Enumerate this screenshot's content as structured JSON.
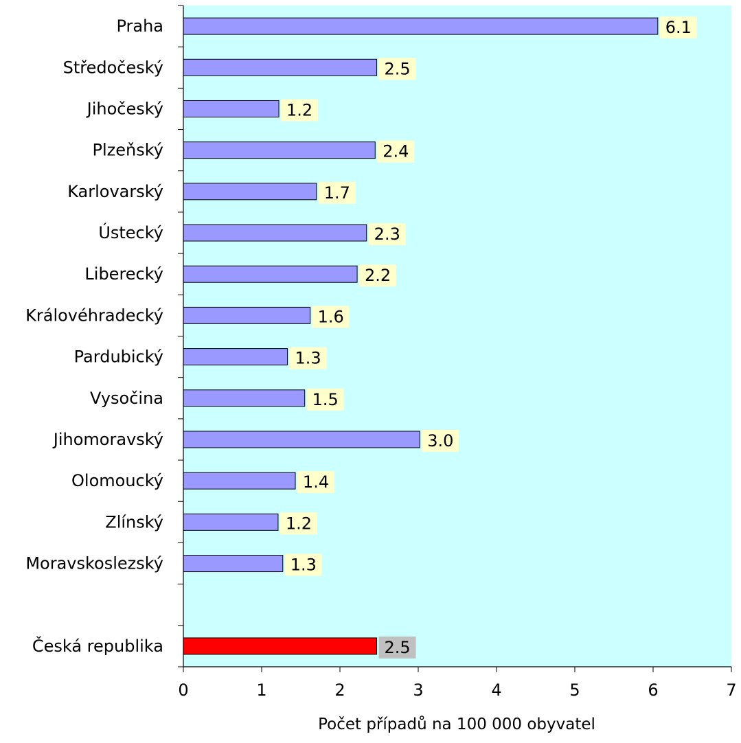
{
  "chart_data": {
    "type": "bar",
    "orientation": "horizontal",
    "categories": [
      "Praha",
      "Středočeský",
      "Jihočeský",
      "Plzeňský",
      "Karlovarský",
      "Ústecký",
      "Liberecký",
      "Královéhradecký",
      "Pardubický",
      "Vysočina",
      "Jihomoravský",
      "Olomoucký",
      "Zlínský",
      "Moravskoslezský",
      "",
      "Česká republika"
    ],
    "values": [
      6.06,
      2.47,
      1.22,
      2.45,
      1.7,
      2.34,
      2.22,
      1.62,
      1.33,
      1.55,
      3.02,
      1.43,
      1.21,
      1.27,
      null,
      2.47
    ],
    "data_labels": [
      "6.1",
      "2.5",
      "1.2",
      "2.4",
      "1.7",
      "2.3",
      "2.2",
      "1.6",
      "1.3",
      "1.5",
      "3.0",
      "1.4",
      "1.2",
      "1.3",
      "",
      "2.5"
    ],
    "xlabel": "Počet případů na 100 000 obyvatel",
    "ylabel": "",
    "title": "",
    "xlim": [
      0,
      7
    ],
    "xticks": [
      "0",
      "1",
      "2",
      "3",
      "4",
      "5",
      "6",
      "7"
    ],
    "grid": false,
    "colors": {
      "plot_background": "#ccffff",
      "bar": "#9999ff",
      "highlight_bar": "#ff0000",
      "label_background": "#ffffcc",
      "highlight_label_background": "#c0c0c0"
    }
  }
}
